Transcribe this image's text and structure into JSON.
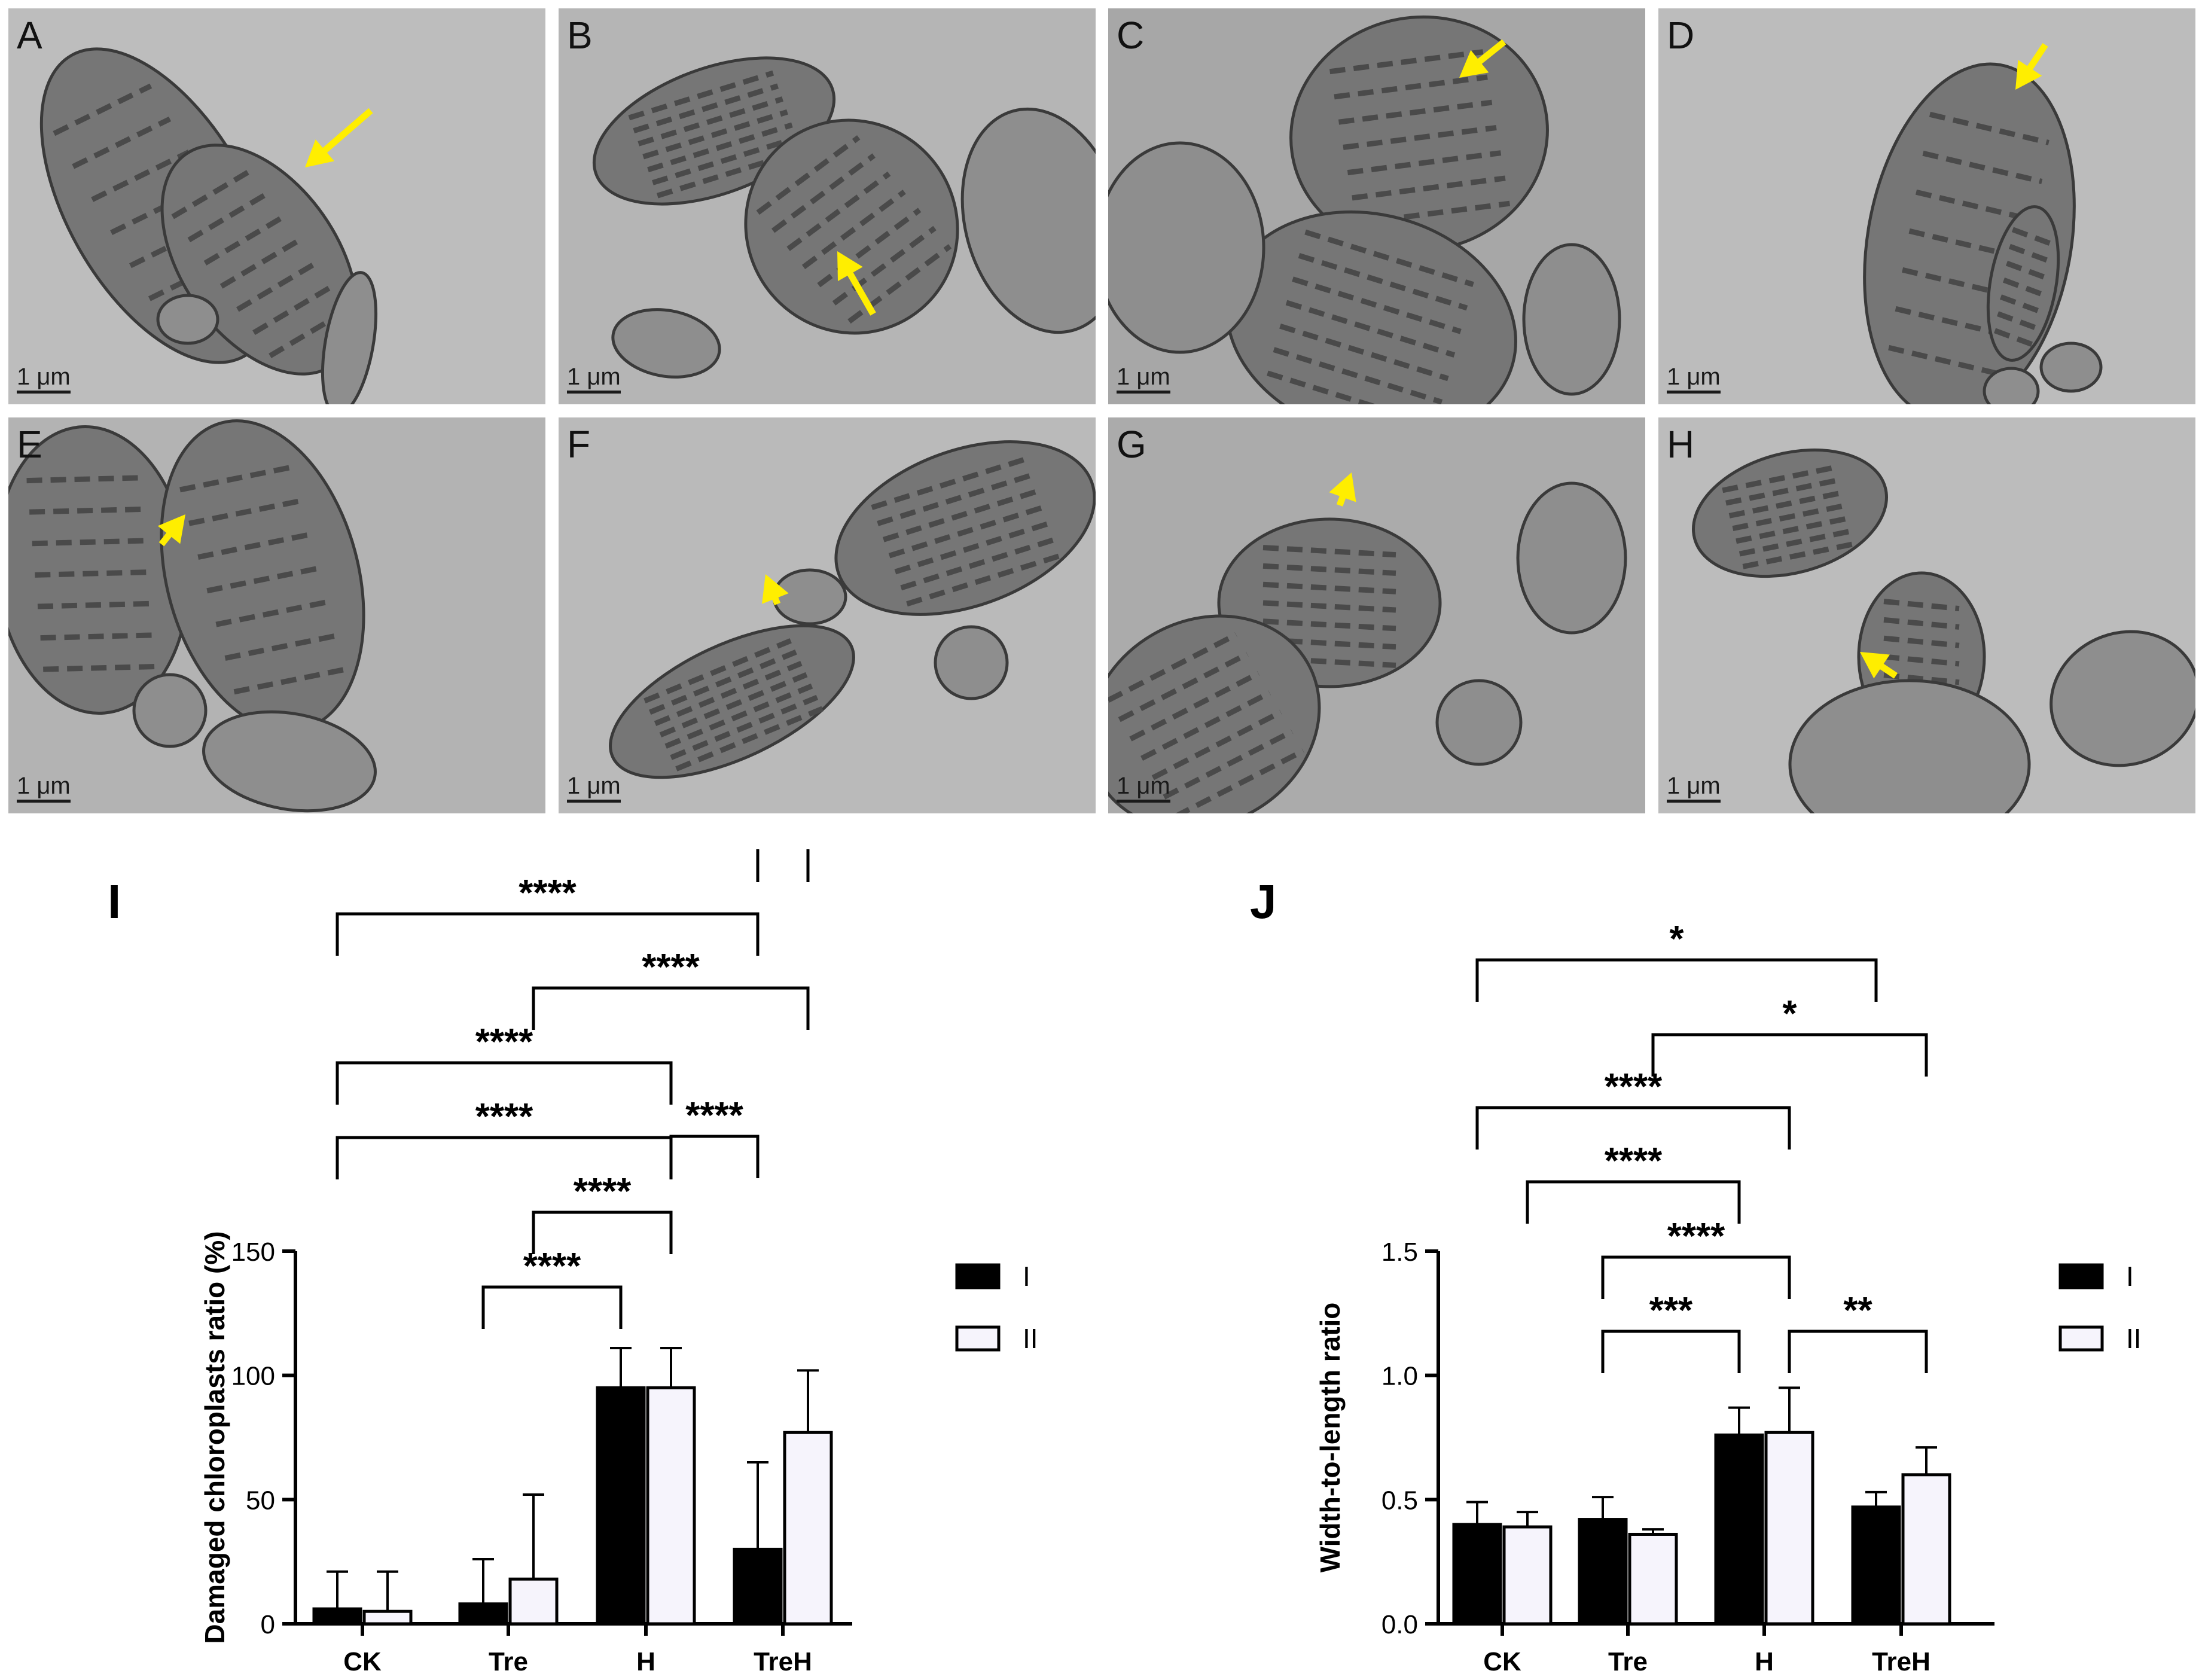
{
  "micrographs": [
    {
      "label": "A",
      "scale_bar": "1 μm",
      "arrow": true,
      "tone": "#bdbdbd"
    },
    {
      "label": "B",
      "scale_bar": "1 μm",
      "arrow": true,
      "tone": "#b5b5b5"
    },
    {
      "label": "C",
      "scale_bar": "1 μm",
      "arrow": true,
      "tone": "#a7a7a7"
    },
    {
      "label": "D",
      "scale_bar": "1 μm",
      "arrow": true,
      "tone": "#bcbcbc"
    },
    {
      "label": "E",
      "scale_bar": "1 μm",
      "arrow": true,
      "tone": "#b3b3b3"
    },
    {
      "label": "F",
      "scale_bar": "1 μm",
      "arrow": true,
      "tone": "#bababa"
    },
    {
      "label": "G",
      "scale_bar": "1 μm",
      "arrow": true,
      "tone": "#ababab"
    },
    {
      "label": "H",
      "scale_bar": "1 μm",
      "arrow": true,
      "tone": "#bcbcbc"
    }
  ],
  "colors": {
    "arrow": "#ffee00",
    "series_I": "#000000",
    "series_II": "#f6f4fc",
    "axis": "#000000"
  },
  "chart_data": [
    {
      "panel_label": "I",
      "type": "bar",
      "categories": [
        "CK",
        "Tre",
        "H",
        "TreH"
      ],
      "series": [
        {
          "name": "I",
          "values": [
            6,
            8,
            95,
            30
          ],
          "errors": [
            15,
            18,
            16,
            35
          ]
        },
        {
          "name": "II",
          "values": [
            5,
            18,
            95,
            77
          ],
          "errors": [
            16,
            34,
            16,
            25
          ]
        }
      ],
      "xlabel": "",
      "ylabel": "Damaged chloroplasts ratio (%)",
      "ylim": [
        0,
        150
      ],
      "yticks": [
        0,
        50,
        100,
        150
      ],
      "legend": "right",
      "grid": false,
      "comparisons": [
        {
          "from": "Tre",
          "to": "H",
          "label": "****"
        },
        {
          "from": "Tre",
          "to": "H",
          "label": "****"
        },
        {
          "from": "CK",
          "to": "H",
          "label": "****"
        },
        {
          "from": "H",
          "to": "TreH",
          "label": "****"
        },
        {
          "from": "CK",
          "to": "H",
          "label": "****"
        },
        {
          "from": "Tre",
          "to": "TreH",
          "label": "****"
        },
        {
          "from": "CK",
          "to": "TreH",
          "label": "****"
        },
        {
          "from": "TreH",
          "to": "TreH",
          "label": "***"
        }
      ]
    },
    {
      "panel_label": "J",
      "type": "bar",
      "categories": [
        "CK",
        "Tre",
        "H",
        "TreH"
      ],
      "series": [
        {
          "name": "I",
          "values": [
            0.4,
            0.42,
            0.76,
            0.47
          ],
          "errors": [
            0.09,
            0.09,
            0.11,
            0.06
          ]
        },
        {
          "name": "II",
          "values": [
            0.39,
            0.36,
            0.77,
            0.6
          ],
          "errors": [
            0.06,
            0.02,
            0.18,
            0.11
          ]
        }
      ],
      "xlabel": "",
      "ylabel": "Width-to-length ratio",
      "ylim": [
        0,
        1.5
      ],
      "yticks": [
        "0.0",
        "0.5",
        "1.0",
        "1.5"
      ],
      "legend": "right",
      "grid": false,
      "comparisons": [
        {
          "from": "Tre",
          "to": "H",
          "label": "***"
        },
        {
          "from": "H",
          "to": "TreH",
          "label": "**"
        },
        {
          "from": "Tre",
          "to": "H",
          "label": "****"
        },
        {
          "from": "CK",
          "to": "H",
          "label": "****"
        },
        {
          "from": "CK",
          "to": "H",
          "label": "****"
        },
        {
          "from": "Tre",
          "to": "TreH",
          "label": "*"
        },
        {
          "from": "CK",
          "to": "TreH",
          "label": "*"
        }
      ]
    }
  ]
}
